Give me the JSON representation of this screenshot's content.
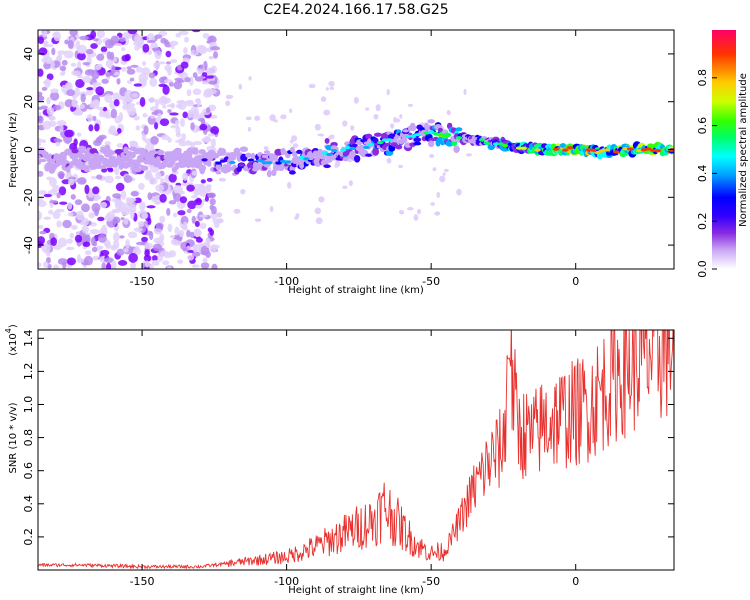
{
  "title": "C2E4.2024.166.17.58.G25",
  "colors": {
    "snr_line": "#e8312e",
    "background": "#ffffff",
    "axis": "#000000",
    "colormap": [
      "#ffffff",
      "#c9a6f5",
      "#8a2be2",
      "#3300ff",
      "#0000ff",
      "#00aaff",
      "#00ffff",
      "#00ff66",
      "#33ff00",
      "#ccff00",
      "#ffcc00",
      "#ff3300",
      "#ff0066"
    ]
  },
  "chart_data": [
    {
      "type": "heatmap",
      "xlabel": "Height of straight line (km)",
      "ylabel": "Frequency (Hz)",
      "xlim": [
        -186,
        34
      ],
      "ylim": [
        -50,
        50
      ],
      "xticks": [
        -150,
        -100,
        -50,
        0
      ],
      "yticks": [
        -40,
        -20,
        0,
        20,
        40
      ],
      "grid": false,
      "colorbar": {
        "label": "Normalized spectral amplitude",
        "range": [
          0,
          1
        ],
        "ticks": [
          0.0,
          0.2,
          0.4,
          0.6,
          0.8
        ]
      },
      "ridge": {
        "x": [
          -186,
          -170,
          -150,
          -130,
          -120,
          -110,
          -100,
          -90,
          -80,
          -70,
          -60,
          -50,
          -45,
          -40,
          -35,
          -30,
          -25,
          -20,
          -10,
          0,
          10,
          20,
          34
        ],
        "freq": [
          -5,
          -4,
          -4,
          -5,
          -5,
          -5,
          -5,
          -3,
          0,
          2,
          5,
          7,
          6,
          5,
          4,
          3,
          2,
          1,
          0,
          0,
          -1,
          0,
          0
        ],
        "amplitude": [
          0.25,
          0.25,
          0.2,
          0.2,
          0.35,
          0.4,
          0.4,
          0.45,
          0.45,
          0.5,
          0.5,
          0.55,
          0.7,
          0.55,
          0.5,
          0.5,
          0.6,
          0.75,
          0.85,
          0.95,
          0.85,
          0.9,
          0.95
        ]
      }
    },
    {
      "type": "line",
      "xlabel": "Height of straight line (km)",
      "ylabel": "SNR (10 * v/v)",
      "y_scale_label": "(x10",
      "y_scale_exponent": "4",
      "xlim": [
        -186,
        34
      ],
      "ylim": [
        0,
        1.45
      ],
      "xticks": [
        -150,
        -100,
        -50,
        0
      ],
      "yticks": [
        0.2,
        0.4,
        0.6,
        0.8,
        1.0,
        1.2,
        1.4
      ],
      "grid": false,
      "series": [
        {
          "x": [
            -186,
            -170,
            -150,
            -130,
            -120,
            -110,
            -100,
            -90,
            -80,
            -70,
            -66,
            -60,
            -55,
            -50,
            -45,
            -40,
            -35,
            -30,
            -25,
            -23,
            -20,
            -15,
            -10,
            -5,
            0,
            5,
            10,
            15,
            20,
            25,
            30,
            34
          ],
          "values": [
            0.03,
            0.03,
            0.02,
            0.02,
            0.04,
            0.06,
            0.08,
            0.14,
            0.22,
            0.3,
            0.38,
            0.25,
            0.15,
            0.1,
            0.12,
            0.3,
            0.5,
            0.65,
            0.75,
            1.3,
            0.85,
            0.8,
            0.9,
            0.92,
            0.95,
            1.0,
            1.1,
            1.2,
            1.25,
            1.3,
            1.35,
            1.38
          ]
        }
      ]
    }
  ]
}
